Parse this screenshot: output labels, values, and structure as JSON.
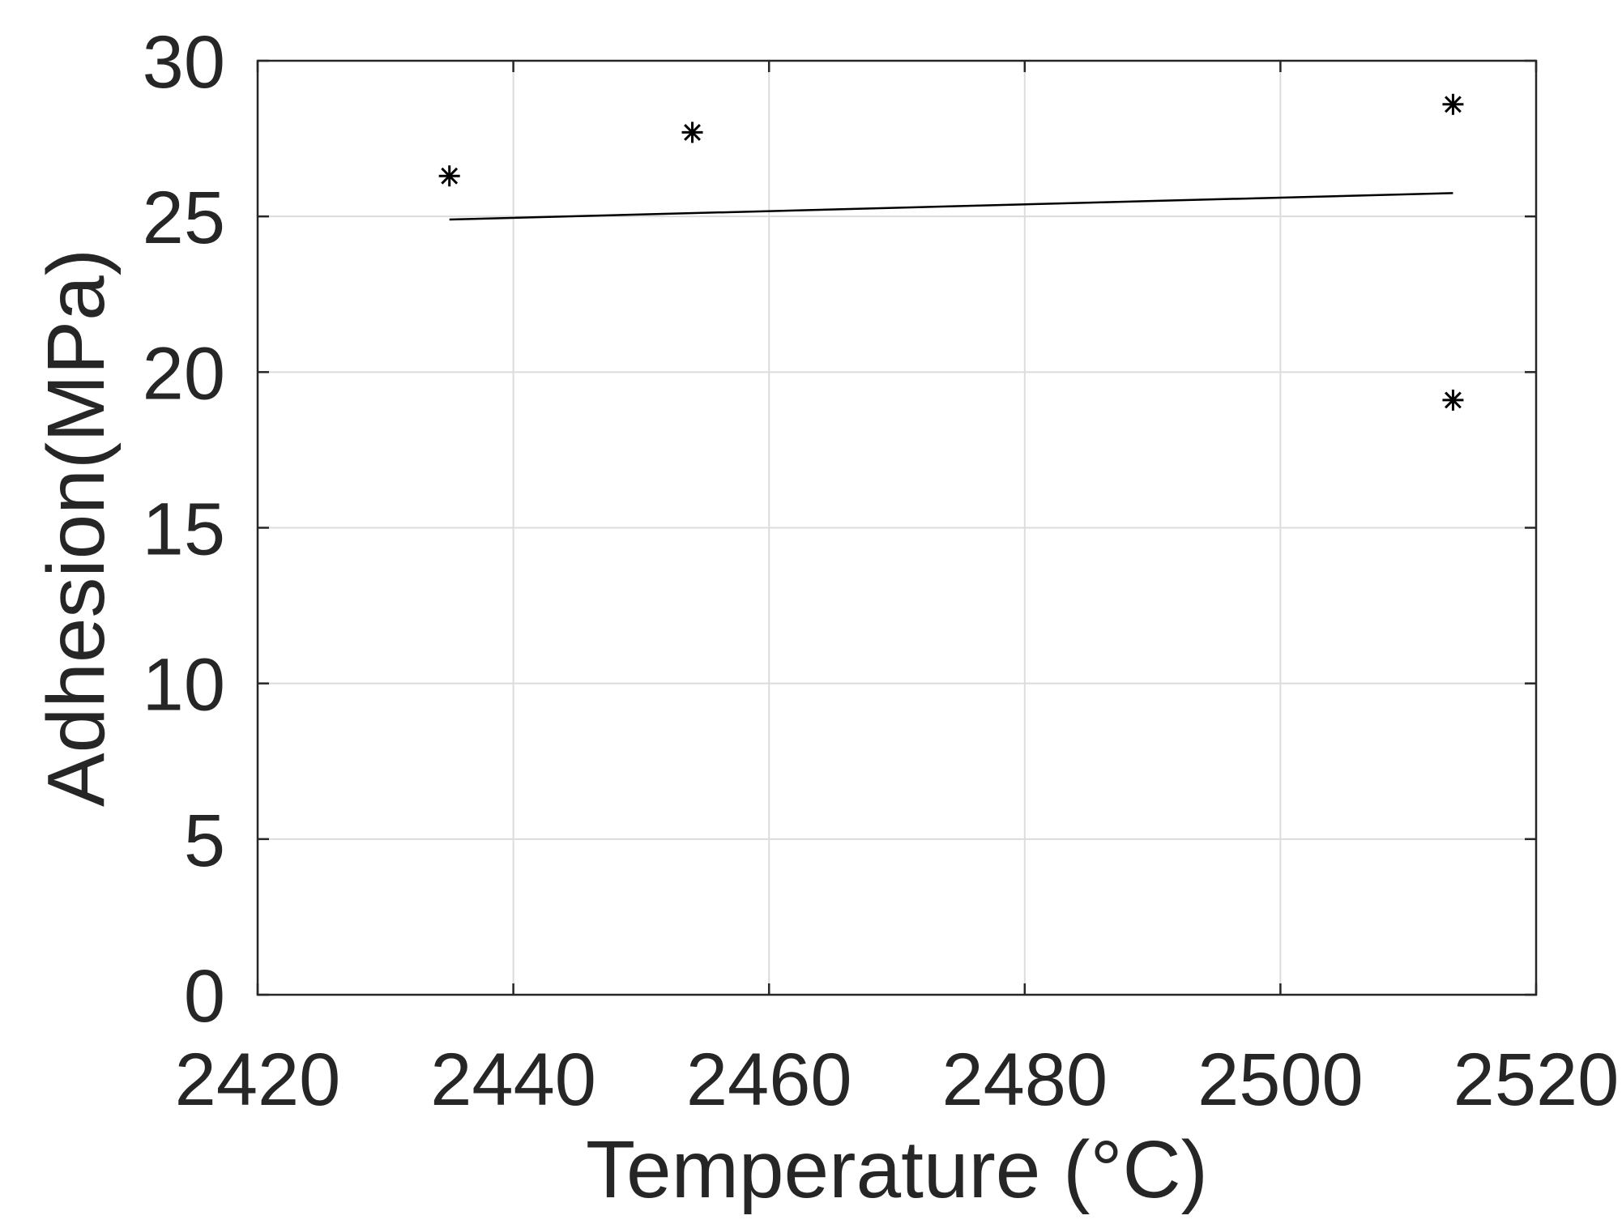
{
  "chart_data": {
    "type": "scatter",
    "title": "",
    "xlabel": "Temperature (°C)",
    "ylabel": "Adhesion(MPa)",
    "xlim": [
      2420,
      2520
    ],
    "ylim": [
      0,
      30
    ],
    "xticks": [
      2420,
      2440,
      2460,
      2480,
      2500,
      2520
    ],
    "yticks": [
      0,
      5,
      10,
      15,
      20,
      25,
      30
    ],
    "grid": true,
    "legend": "none",
    "marker": "asterisk",
    "colors": {
      "data": "#000000",
      "axis": "#262626",
      "grid": "#dcdcdc"
    },
    "series": [
      {
        "type": "scatter",
        "points": [
          {
            "x": 2435,
            "y": 26.3
          },
          {
            "x": 2454,
            "y": 27.7
          },
          {
            "x": 2513.5,
            "y": 28.6
          },
          {
            "x": 2513.5,
            "y": 19.1
          }
        ]
      },
      {
        "type": "line",
        "points": [
          {
            "x": 2435,
            "y": 24.9
          },
          {
            "x": 2513.5,
            "y": 25.75
          }
        ]
      }
    ]
  }
}
